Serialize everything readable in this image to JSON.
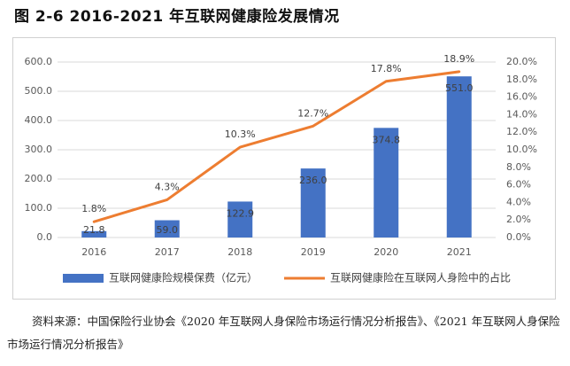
{
  "figure": {
    "title": "图 2-6  2016-2021 年互联网健康险发展情况",
    "source": "资料来源：中国保险行业协会《2020 年互联网人身保险市场运行情况分析报告》、《2021 年互联网人身保险市场运行情况分析报告》"
  },
  "colors": {
    "bar": "#4472c4",
    "line": "#ed7d31",
    "axis_text": "#595959",
    "grid": "#d9d9d9"
  },
  "chart_data": {
    "type": "bar",
    "categories": [
      "2016",
      "2017",
      "2018",
      "2019",
      "2020",
      "2021"
    ],
    "series": [
      {
        "name": "互联网健康险规模保费（亿元）",
        "type": "bar",
        "axis": "left",
        "values": [
          21.8,
          59.0,
          122.9,
          236.0,
          374.8,
          551.0
        ],
        "labels": [
          "21.8",
          "59.0",
          "122.9",
          "236.0",
          "374.8",
          "551.0"
        ]
      },
      {
        "name": "互联网健康险在互联网人身险中的占比",
        "type": "line",
        "axis": "right",
        "values": [
          1.8,
          4.3,
          10.3,
          12.7,
          17.8,
          18.9
        ],
        "labels": [
          "1.8%",
          "4.3%",
          "10.3%",
          "12.7%",
          "17.8%",
          "18.9%"
        ]
      }
    ],
    "left_axis": {
      "ylim": [
        0,
        600
      ],
      "ticks": [
        "0.0",
        "100.0",
        "200.0",
        "300.0",
        "400.0",
        "500.0",
        "600.0"
      ]
    },
    "right_axis": {
      "ylim": [
        0,
        20
      ],
      "ticks": [
        "0.0%",
        "2.0%",
        "4.0%",
        "6.0%",
        "8.0%",
        "10.0%",
        "12.0%",
        "14.0%",
        "16.0%",
        "18.0%",
        "20.0%"
      ]
    },
    "grid": true,
    "legend_position": "bottom"
  }
}
